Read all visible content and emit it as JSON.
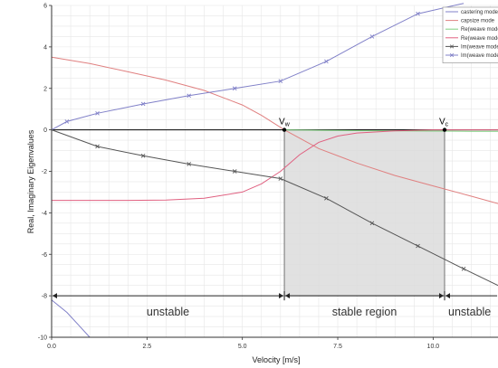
{
  "chart_data": {
    "type": "line",
    "title": "",
    "xlabel": "Velocity [m/s]",
    "ylabel": "Real, Imaginary Eigenvalues",
    "xlim": [
      0,
      11.7
    ],
    "ylim": [
      -10,
      6
    ],
    "x_ticks": [
      "0.0",
      "2.5",
      "5.0",
      "7.5",
      "10.0"
    ],
    "x_tick_values": [
      0,
      2.5,
      5.0,
      7.5,
      10.0
    ],
    "y_ticks": [
      "6",
      "4",
      "2",
      "0",
      "-2",
      "-4",
      "-6",
      "-8",
      "-10"
    ],
    "y_tick_values": [
      6,
      4,
      2,
      0,
      -2,
      -4,
      -6,
      -8,
      -10
    ],
    "grid": true,
    "legend_position": "top-right",
    "v_markers": [
      {
        "sym": "V",
        "sub": "w",
        "x": 6.1
      },
      {
        "sym": "V",
        "sub": "c",
        "x": 10.3
      }
    ],
    "stable_region": {
      "x_start": 6.1,
      "x_end": 10.3
    },
    "regions": [
      {
        "label": "unstable",
        "x_start": 0,
        "x_end": 6.1
      },
      {
        "label": "stable region",
        "x_start": 6.1,
        "x_end": 10.3
      },
      {
        "label": "unstable",
        "x_start": 10.3,
        "x_end": 11.7
      }
    ],
    "region_arrow_y": -8,
    "series": [
      {
        "name": "castering mode",
        "color": "#8080c8",
        "marker": "none",
        "x": [
          0,
          0.4,
          0.7,
          1.0
        ],
        "y": [
          -8.2,
          -8.8,
          -9.4,
          -10.0
        ]
      },
      {
        "name": "capsize mode",
        "color": "#e08080",
        "marker": "none",
        "x": [
          0,
          1,
          2,
          3,
          4,
          5,
          5.5,
          6.1,
          7,
          8,
          9,
          10,
          11,
          11.7
        ],
        "y": [
          3.5,
          3.2,
          2.8,
          2.4,
          1.9,
          1.2,
          0.7,
          0.0,
          -0.9,
          -1.6,
          -2.2,
          -2.7,
          -3.2,
          -3.55
        ]
      },
      {
        "name": "Re(weave mode)",
        "color": "#80d080",
        "marker": "none",
        "x": [
          6.1,
          7,
          8,
          9,
          10,
          10.3,
          11,
          11.7
        ],
        "y": [
          0.0,
          -0.02,
          -0.04,
          -0.05,
          -0.06,
          -0.06,
          -0.07,
          -0.07
        ]
      },
      {
        "name": "Re(weave mode)",
        "color": "#e06080",
        "marker": "none",
        "x": [
          0,
          1,
          2,
          3,
          4,
          5,
          5.5,
          6.0,
          6.5,
          7,
          7.5,
          8,
          9,
          10,
          11,
          11.7
        ],
        "y": [
          -3.4,
          -3.4,
          -3.4,
          -3.38,
          -3.3,
          -3.0,
          -2.6,
          -2.0,
          -1.2,
          -0.6,
          -0.3,
          -0.15,
          -0.05,
          0.0,
          0.0,
          0.0
        ]
      },
      {
        "name": "Im(weave mode)",
        "color": "#555555",
        "marker": "x",
        "x": [
          0,
          1.2,
          2.4,
          3.6,
          4.8,
          6.0,
          7.2,
          8.4,
          9.6,
          10.8,
          11.7
        ],
        "y": [
          0,
          -0.8,
          -1.25,
          -1.65,
          -2.0,
          -2.35,
          -3.3,
          -4.5,
          -5.6,
          -6.7,
          -7.5
        ]
      },
      {
        "name": "Im(weave mode)",
        "color": "#8080c8",
        "marker": "x",
        "x": [
          0,
          0.4,
          1.2,
          2.4,
          3.6,
          4.8,
          6.0,
          7.2,
          8.4,
          9.6,
          10.8
        ],
        "y": [
          0,
          0.4,
          0.8,
          1.25,
          1.65,
          2.0,
          2.35,
          3.3,
          4.5,
          5.6,
          6.1
        ]
      }
    ]
  }
}
